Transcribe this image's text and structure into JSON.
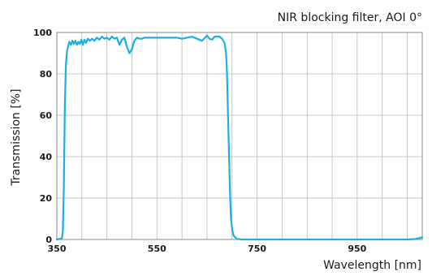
{
  "chart_data": {
    "type": "line",
    "title": "NIR blocking filter, AOI 0°",
    "xlabel": "Wavelength [nm]",
    "ylabel": "Transmission [%]",
    "xlim": [
      350,
      1080
    ],
    "ylim": [
      0,
      100
    ],
    "xticks": [
      350,
      550,
      750,
      950
    ],
    "yticks": [
      0,
      20,
      40,
      60,
      80,
      100
    ],
    "grid": true,
    "line_color": "#1ab0e6",
    "series": [
      {
        "x": [
          350,
          360,
          362,
          364,
          366,
          368,
          370,
          372,
          375,
          378,
          381,
          384,
          387,
          390,
          393,
          396,
          399,
          402,
          405,
          408,
          412,
          416,
          420,
          425,
          430,
          435,
          440,
          445,
          450,
          455,
          460,
          465,
          470,
          475,
          480,
          485,
          490,
          495,
          500,
          505,
          510,
          515,
          520,
          525,
          530,
          540,
          550,
          560,
          570,
          580,
          590,
          600,
          610,
          620,
          630,
          640,
          650,
          655,
          660,
          665,
          670,
          675,
          680,
          685,
          688,
          690,
          692,
          694,
          696,
          698,
          700,
          703,
          706,
          710,
          715,
          720,
          730,
          750,
          800,
          900,
          1000,
          1050,
          1065,
          1072,
          1076,
          1080
        ],
        "y": [
          0,
          0.5,
          4,
          25,
          65,
          84,
          90,
          93,
          95.5,
          94,
          96,
          94.5,
          96,
          94,
          95.5,
          94.5,
          96.5,
          94,
          96.5,
          95,
          97,
          96,
          97,
          96,
          97.5,
          96.5,
          98,
          97,
          97.5,
          96.5,
          98,
          97,
          97.5,
          94,
          96.5,
          97.5,
          93,
          90,
          92,
          96,
          97.5,
          97,
          97,
          97.5,
          97.5,
          97.5,
          97.5,
          97.5,
          97.5,
          97.5,
          97.5,
          97,
          97.5,
          98,
          97,
          96,
          98.5,
          97,
          96.5,
          98,
          98,
          98,
          97,
          95,
          90,
          80,
          60,
          40,
          22,
          10,
          5,
          2,
          1,
          0.3,
          0.1,
          0,
          0,
          0,
          0,
          0,
          0,
          0,
          0.2,
          0.5,
          0.8,
          1
        ]
      }
    ]
  }
}
